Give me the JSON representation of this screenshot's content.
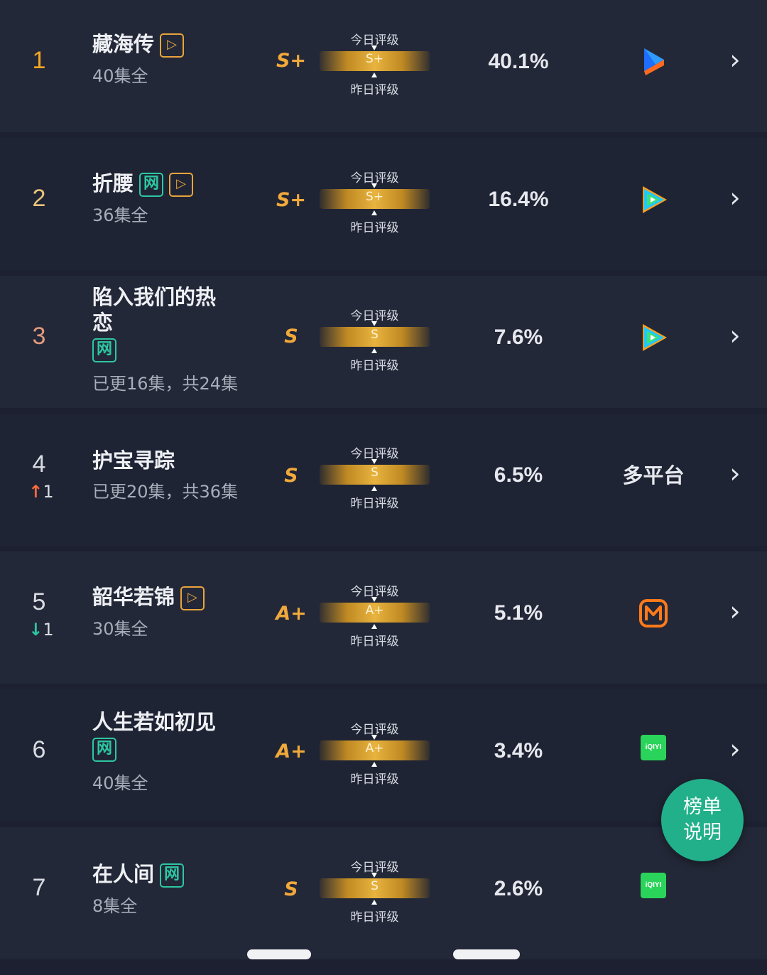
{
  "rows": [
    {
      "rank": "1",
      "title": "藏海传",
      "badges": [
        "play"
      ],
      "episodes": "40集全",
      "grade": "S+",
      "today_label": "今日评级",
      "yesterday_label": "昨日评级",
      "bar_grade": "S+",
      "share": "40.1%",
      "platform": "youku-icon",
      "change_dir": "",
      "change_val": ""
    },
    {
      "rank": "2",
      "title": "折腰",
      "badges": [
        "net",
        "play"
      ],
      "episodes": "36集全",
      "grade": "S+",
      "today_label": "今日评级",
      "yesterday_label": "昨日评级",
      "bar_grade": "S+",
      "share": "16.4%",
      "platform": "tencent-video-icon",
      "change_dir": "",
      "change_val": ""
    },
    {
      "rank": "3",
      "title_line1": "陷入我们的热",
      "title_line2": "恋",
      "badges": [
        "net"
      ],
      "episodes": "已更16集，共24集",
      "grade": "S",
      "today_label": "今日评级",
      "yesterday_label": "昨日评级",
      "bar_grade": "S",
      "share": "7.6%",
      "platform": "tencent-video-icon",
      "change_dir": "",
      "change_val": ""
    },
    {
      "rank": "4",
      "title": "护宝寻踪",
      "badges": [],
      "episodes": "已更20集，共36集",
      "grade": "S",
      "today_label": "今日评级",
      "yesterday_label": "昨日评级",
      "bar_grade": "S",
      "share": "6.5%",
      "platform_text": "多平台",
      "change_dir": "↑",
      "change_val": "1"
    },
    {
      "rank": "5",
      "title": "韶华若锦",
      "badges": [
        "play"
      ],
      "episodes": "30集全",
      "grade": "A+",
      "today_label": "今日评级",
      "yesterday_label": "昨日评级",
      "bar_grade": "A+",
      "share": "5.1%",
      "platform": "mango-tv-icon",
      "change_dir": "↓",
      "change_val": "1"
    },
    {
      "rank": "6",
      "title": "人生若如初见",
      "badges": [
        "net"
      ],
      "episodes": "40集全",
      "grade": "A+",
      "today_label": "今日评级",
      "yesterday_label": "昨日评级",
      "bar_grade": "A+",
      "share": "3.4%",
      "platform": "iqiyi-icon",
      "platform_text_small": "iQIYI",
      "change_dir": "",
      "change_val": ""
    },
    {
      "rank": "7",
      "title": "在人间",
      "badges": [
        "net"
      ],
      "episodes": "8集全",
      "grade": "S",
      "today_label": "今日评级",
      "yesterday_label": "昨日评级",
      "bar_grade": "S",
      "share": "2.6%",
      "platform": "iqiyi-icon",
      "platform_text_small": "iQIYI",
      "change_dir": "",
      "change_val": ""
    }
  ],
  "badge_labels": {
    "net": "网",
    "play": "▷"
  },
  "fab": {
    "line1": "榜单",
    "line2": "说明"
  },
  "chevron": "›",
  "colors": {
    "accent_gold": "#f0a93a",
    "net_badge": "#2dc7a1",
    "up": "#ff6a3d",
    "down": "#2dc7a1",
    "fab": "#21b08a"
  }
}
